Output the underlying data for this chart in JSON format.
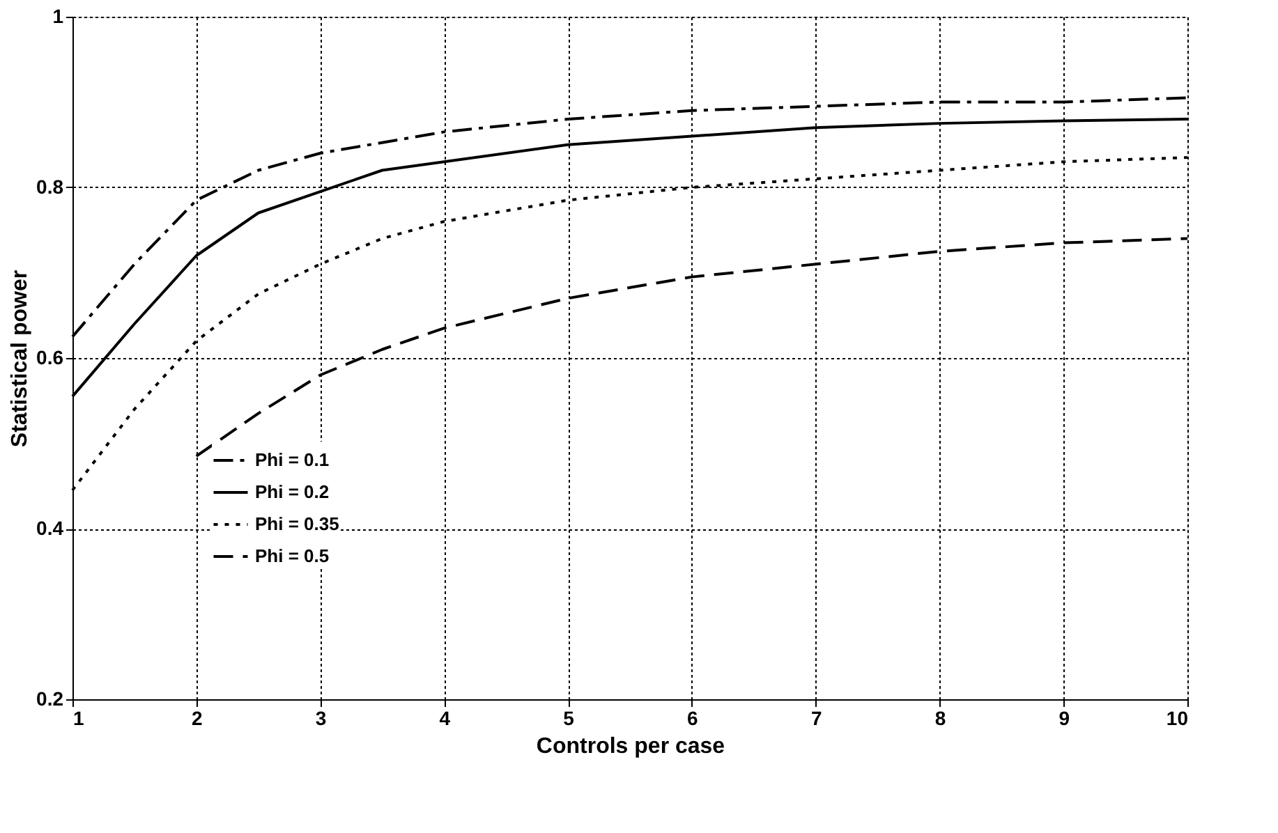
{
  "chart_data": {
    "type": "line",
    "xlabel": "Controls per case",
    "ylabel": "Statistical power",
    "xlim": [
      1,
      10
    ],
    "xticks": [
      1,
      2,
      3,
      4,
      5,
      6,
      7,
      8,
      9,
      10
    ],
    "ylim": [
      0.2,
      1
    ],
    "yticks": [
      0.2,
      0.4,
      0.6,
      0.8,
      1
    ],
    "grid": true,
    "legend": "bottom left",
    "marker": "none",
    "series": [
      {
        "name": "Phi = 0.1",
        "color": "#000000",
        "line_style": "dashdot",
        "x": [
          1,
          1.5,
          2,
          2.5,
          3,
          4,
          5,
          6,
          7,
          8,
          9,
          10
        ],
        "values": [
          0.625,
          0.71,
          0.785,
          0.82,
          0.84,
          0.865,
          0.88,
          0.89,
          0.895,
          0.9,
          0.9,
          0.905
        ]
      },
      {
        "name": "Phi = 0.2",
        "color": "#000000",
        "line_style": "solid",
        "x": [
          1,
          1.5,
          2,
          2.5,
          3,
          3.5,
          4,
          5,
          6,
          7,
          8,
          9,
          10
        ],
        "values": [
          0.555,
          0.64,
          0.72,
          0.77,
          0.795,
          0.82,
          0.83,
          0.85,
          0.86,
          0.87,
          0.875,
          0.878,
          0.88
        ]
      },
      {
        "name": "Phi = 0.35",
        "color": "#000000",
        "line_style": "dotted",
        "x": [
          1,
          1.5,
          2,
          2.5,
          3,
          3.5,
          4,
          5,
          6,
          7,
          8,
          9,
          10
        ],
        "values": [
          0.445,
          0.54,
          0.62,
          0.675,
          0.71,
          0.74,
          0.76,
          0.785,
          0.8,
          0.81,
          0.82,
          0.83,
          0.835
        ]
      },
      {
        "name": "Phi = 0.5",
        "color": "#000000",
        "line_style": "dashed",
        "x": [
          2,
          2.5,
          3,
          3.5,
          4,
          5,
          6,
          7,
          8,
          9,
          10
        ],
        "values": [
          0.485,
          0.535,
          0.58,
          0.61,
          0.635,
          0.67,
          0.695,
          0.71,
          0.725,
          0.735,
          0.74
        ]
      }
    ]
  }
}
